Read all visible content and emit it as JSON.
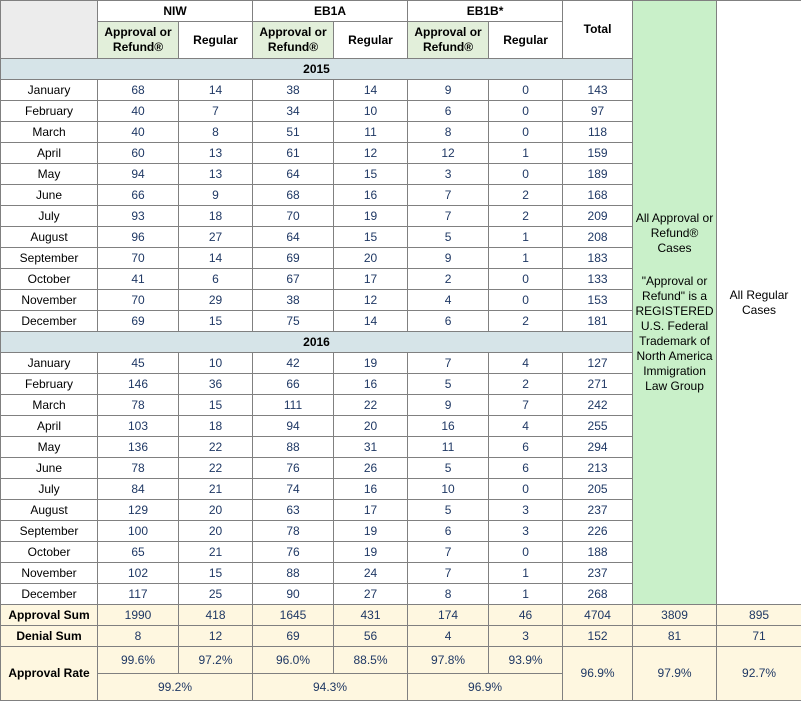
{
  "chart_data": {
    "type": "table",
    "column_groups": [
      "NIW",
      "EB1A",
      "EB1B*"
    ],
    "subheaders": {
      "approval": "Approval or Refund®",
      "regular": "Regular"
    },
    "total_label": "Total",
    "sections": [
      {
        "year": "2015",
        "rows": [
          {
            "month": "January",
            "values": [
              "68",
              "14",
              "38",
              "14",
              "9",
              "0",
              "143"
            ]
          },
          {
            "month": "February",
            "values": [
              "40",
              "7",
              "34",
              "10",
              "6",
              "0",
              "97"
            ]
          },
          {
            "month": "March",
            "values": [
              "40",
              "8",
              "51",
              "11",
              "8",
              "0",
              "118"
            ]
          },
          {
            "month": "April",
            "values": [
              "60",
              "13",
              "61",
              "12",
              "12",
              "1",
              "159"
            ]
          },
          {
            "month": "May",
            "values": [
              "94",
              "13",
              "64",
              "15",
              "3",
              "0",
              "189"
            ]
          },
          {
            "month": "June",
            "values": [
              "66",
              "9",
              "68",
              "16",
              "7",
              "2",
              "168"
            ]
          },
          {
            "month": "July",
            "values": [
              "93",
              "18",
              "70",
              "19",
              "7",
              "2",
              "209"
            ]
          },
          {
            "month": "August",
            "values": [
              "96",
              "27",
              "64",
              "15",
              "5",
              "1",
              "208"
            ]
          },
          {
            "month": "September",
            "values": [
              "70",
              "14",
              "69",
              "20",
              "9",
              "1",
              "183"
            ]
          },
          {
            "month": "October",
            "values": [
              "41",
              "6",
              "67",
              "17",
              "2",
              "0",
              "133"
            ]
          },
          {
            "month": "November",
            "values": [
              "70",
              "29",
              "38",
              "12",
              "4",
              "0",
              "153"
            ]
          },
          {
            "month": "December",
            "values": [
              "69",
              "15",
              "75",
              "14",
              "6",
              "2",
              "181"
            ]
          }
        ]
      },
      {
        "year": "2016",
        "rows": [
          {
            "month": "January",
            "values": [
              "45",
              "10",
              "42",
              "19",
              "7",
              "4",
              "127"
            ]
          },
          {
            "month": "February",
            "values": [
              "146",
              "36",
              "66",
              "16",
              "5",
              "2",
              "271"
            ]
          },
          {
            "month": "March",
            "values": [
              "78",
              "15",
              "111",
              "22",
              "9",
              "7",
              "242"
            ]
          },
          {
            "month": "April",
            "values": [
              "103",
              "18",
              "94",
              "20",
              "16",
              "4",
              "255"
            ]
          },
          {
            "month": "May",
            "values": [
              "136",
              "22",
              "88",
              "31",
              "11",
              "6",
              "294"
            ]
          },
          {
            "month": "June",
            "values": [
              "78",
              "22",
              "76",
              "26",
              "5",
              "6",
              "213"
            ]
          },
          {
            "month": "July",
            "values": [
              "84",
              "21",
              "74",
              "16",
              "10",
              "0",
              "205"
            ]
          },
          {
            "month": "August",
            "values": [
              "129",
              "20",
              "63",
              "17",
              "5",
              "3",
              "237"
            ]
          },
          {
            "month": "September",
            "values": [
              "100",
              "20",
              "78",
              "19",
              "6",
              "3",
              "226"
            ]
          },
          {
            "month": "October",
            "values": [
              "65",
              "21",
              "76",
              "19",
              "7",
              "0",
              "188"
            ]
          },
          {
            "month": "November",
            "values": [
              "102",
              "15",
              "88",
              "24",
              "7",
              "1",
              "237"
            ]
          },
          {
            "month": "December",
            "values": [
              "117",
              "25",
              "90",
              "27",
              "8",
              "1",
              "268"
            ]
          }
        ]
      }
    ],
    "summary": {
      "approval_sum_label": "Approval Sum",
      "approval_sum": [
        "1990",
        "418",
        "1645",
        "431",
        "174",
        "46",
        "4704",
        "3809",
        "895"
      ],
      "denial_sum_label": "Denial Sum",
      "denial_sum": [
        "8",
        "12",
        "69",
        "56",
        "4",
        "3",
        "152",
        "81",
        "71"
      ],
      "approval_rate_label": "Approval Rate",
      "approval_rate_columns": [
        "99.6%",
        "97.2%",
        "96.0%",
        "88.5%",
        "97.8%",
        "93.9%"
      ],
      "approval_rate_groups": [
        "99.2%",
        "94.3%",
        "96.9%"
      ],
      "approval_rate_total": "96.9%",
      "approval_rate_all_approval_refund": "97.9%",
      "approval_rate_all_regular": "92.7%"
    },
    "side_columns": {
      "all_approval_title": "All Approval or Refund® Cases",
      "trademark_note": "\"Approval or Refund\" is a REGISTERED U.S. Federal Trademark of North America Immigration Law Group",
      "all_regular_label": "All Regular Cases"
    }
  },
  "colors": {
    "border": "#808080",
    "corner_bg": "#ececec",
    "header_green": "#e2efda",
    "year_row": "#d6e4e8",
    "summary_yellow": "#fef7e0",
    "side_green": "#c9f0c9",
    "value_text": "#1f3864"
  }
}
